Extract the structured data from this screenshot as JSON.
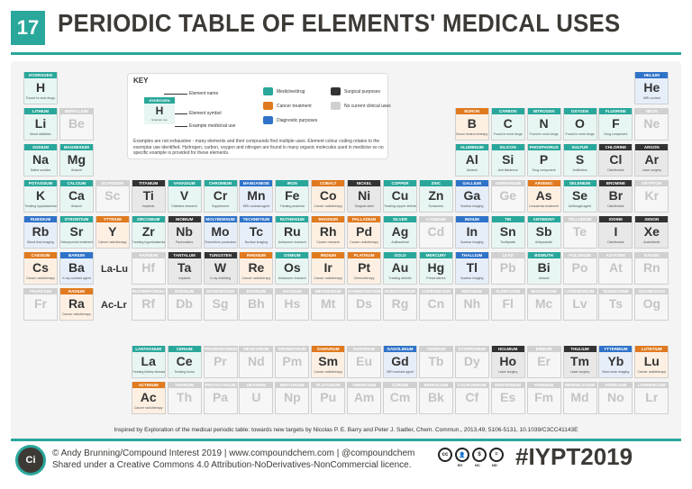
{
  "header": {
    "number": "17",
    "title": "PERIODIC TABLE OF ELEMENTS' MEDICAL USES"
  },
  "colors": {
    "accent": "#2aa79b",
    "medicine_drug": "#2aa79b",
    "cancer_treatment": "#e07a1f",
    "diagnostic": "#2f73c9",
    "surgical": "#333333",
    "no_use": "#d0d0d0"
  },
  "key": {
    "title": "KEY",
    "demo_name": "HYDROGEN",
    "demo_symbol": "H",
    "demo_use": "Example use",
    "label_name": "Element name",
    "label_symbol": "Element symbol",
    "label_use": "Example medicinal use",
    "categories": [
      {
        "label": "Medicine/drug",
        "color": "#2aa79b"
      },
      {
        "label": "Cancer treatment",
        "color": "#e07a1f"
      },
      {
        "label": "Diagnostic purposes",
        "color": "#2f73c9"
      },
      {
        "label": "Surgical purposes",
        "color": "#333333"
      },
      {
        "label": "No current clinical uses",
        "color": "#d0d0d0"
      }
    ],
    "note": "Examples are not exhaustive - many elements and their compounds find multiple uses. Element colour coding relates to the exemplar use identified. Hydrogen, carbon, oxygen and nitrogen are found in many organic molecules used in medicine so no specific example is provided for these elements."
  },
  "placeholders": {
    "lanthanides": "La-Lu",
    "actinides": "Ac-Lr"
  },
  "elements": [
    {
      "name": "Hydrogen",
      "symbol": "H",
      "cat": "med",
      "use": "Found in most drugs"
    },
    {
      "name": "Helium",
      "symbol": "He",
      "cat": "dia",
      "use": "MRI coolant"
    },
    {
      "name": "Lithium",
      "symbol": "Li",
      "cat": "med",
      "use": "Mood stabiliser"
    },
    {
      "name": "Beryllium",
      "symbol": "Be",
      "cat": "non",
      "use": ""
    },
    {
      "name": "Boron",
      "symbol": "B",
      "cat": "can",
      "use": "Boron neutron therapy"
    },
    {
      "name": "Carbon",
      "symbol": "C",
      "cat": "med",
      "use": "Found in most drugs"
    },
    {
      "name": "Nitrogen",
      "symbol": "N",
      "cat": "med",
      "use": "Found in most drugs"
    },
    {
      "name": "Oxygen",
      "symbol": "O",
      "cat": "med",
      "use": "Found in most drugs"
    },
    {
      "name": "Fluorine",
      "symbol": "F",
      "cat": "med",
      "use": "Drug component"
    },
    {
      "name": "Neon",
      "symbol": "Ne",
      "cat": "non",
      "use": ""
    },
    {
      "name": "Sodium",
      "symbol": "Na",
      "cat": "med",
      "use": "Saline solution"
    },
    {
      "name": "Magnesium",
      "symbol": "Mg",
      "cat": "med",
      "use": "Antacid"
    },
    {
      "name": "Aluminium",
      "symbol": "Al",
      "cat": "med",
      "use": "Antacid"
    },
    {
      "name": "Silicon",
      "symbol": "Si",
      "cat": "med",
      "use": "Anti-flatulence"
    },
    {
      "name": "Phosphorus",
      "symbol": "P",
      "cat": "med",
      "use": "Drug component"
    },
    {
      "name": "Sulfur",
      "symbol": "S",
      "cat": "med",
      "use": "Antibiotics"
    },
    {
      "name": "Chlorine",
      "symbol": "Cl",
      "cat": "sur",
      "use": "Disinfectant"
    },
    {
      "name": "Argon",
      "symbol": "Ar",
      "cat": "sur",
      "use": "Laser surgery"
    },
    {
      "name": "Potassium",
      "symbol": "K",
      "cat": "med",
      "use": "Treating hypokalaemia"
    },
    {
      "name": "Calcium",
      "symbol": "Ca",
      "cat": "med",
      "use": "Antacid"
    },
    {
      "name": "Scandium",
      "symbol": "Sc",
      "cat": "non",
      "use": ""
    },
    {
      "name": "Titanium",
      "symbol": "Ti",
      "cat": "sur",
      "use": "Implants"
    },
    {
      "name": "Vanadium",
      "symbol": "V",
      "cat": "med",
      "use": "Diabetes research"
    },
    {
      "name": "Chromium",
      "symbol": "Cr",
      "cat": "med",
      "use": "Supplement"
    },
    {
      "name": "Manganese",
      "symbol": "Mn",
      "cat": "dia",
      "use": "MRI contrast agent"
    },
    {
      "name": "Iron",
      "symbol": "Fe",
      "cat": "med",
      "use": "Treating anaemia"
    },
    {
      "name": "Cobalt",
      "symbol": "Co",
      "cat": "can",
      "use": "Cancer radiotherapy"
    },
    {
      "name": "Nickel",
      "symbol": "Ni",
      "cat": "sur",
      "use": "Surgical steel"
    },
    {
      "name": "Copper",
      "symbol": "Cu",
      "cat": "med",
      "use": "Treating copper deficiency"
    },
    {
      "name": "Zinc",
      "symbol": "Zn",
      "cat": "med",
      "use": "Sunscreen"
    },
    {
      "name": "Gallium",
      "symbol": "Ga",
      "cat": "dia",
      "use": "Nuclear imaging"
    },
    {
      "name": "Germanium",
      "symbol": "Ge",
      "cat": "non",
      "use": ""
    },
    {
      "name": "Arsenic",
      "symbol": "As",
      "cat": "can",
      "use": "Leukaemia treatment"
    },
    {
      "name": "Selenium",
      "symbol": "Se",
      "cat": "med",
      "use": "Antifungal agent"
    },
    {
      "name": "Bromine",
      "symbol": "Br",
      "cat": "sur",
      "use": "Disinfectant"
    },
    {
      "name": "Krypton",
      "symbol": "Kr",
      "cat": "non",
      "use": ""
    },
    {
      "name": "Rubidium",
      "symbol": "Rb",
      "cat": "dia",
      "use": "Blood flow imaging"
    },
    {
      "name": "Strontium",
      "symbol": "Sr",
      "cat": "med",
      "use": "Osteoporosis treatment"
    },
    {
      "name": "Yttrium",
      "symbol": "Y",
      "cat": "can",
      "use": "Cancer radiotherapy"
    },
    {
      "name": "Zirconium",
      "symbol": "Zr",
      "cat": "med",
      "use": "Treating hyperkalaemia"
    },
    {
      "name": "Niobium",
      "symbol": "Nb",
      "cat": "sur",
      "use": "Pacemakers"
    },
    {
      "name": "Molybdenum",
      "symbol": "Mo",
      "cat": "dia",
      "use": "Technetium production"
    },
    {
      "name": "Technetium",
      "symbol": "Tc",
      "cat": "dia",
      "use": "Nuclear imaging"
    },
    {
      "name": "Ruthenium",
      "symbol": "Ru",
      "cat": "med",
      "use": "Anticancer research"
    },
    {
      "name": "Rhodium",
      "symbol": "Rh",
      "cat": "can",
      "use": "Cancer research"
    },
    {
      "name": "Palladium",
      "symbol": "Pd",
      "cat": "can",
      "use": "Cancer radiotherapy"
    },
    {
      "name": "Silver",
      "symbol": "Ag",
      "cat": "med",
      "use": "Antibacterial"
    },
    {
      "name": "Cadmium",
      "symbol": "Cd",
      "cat": "non",
      "use": ""
    },
    {
      "name": "Indium",
      "symbol": "In",
      "cat": "dia",
      "use": "Nuclear imaging"
    },
    {
      "name": "Tin",
      "symbol": "Sn",
      "cat": "med",
      "use": "Toothpaste"
    },
    {
      "name": "Antimony",
      "symbol": "Sb",
      "cat": "med",
      "use": "Antiparasitic"
    },
    {
      "name": "Tellurium",
      "symbol": "Te",
      "cat": "non",
      "use": ""
    },
    {
      "name": "Iodine",
      "symbol": "I",
      "cat": "sur",
      "use": "Disinfectant"
    },
    {
      "name": "Xenon",
      "symbol": "Xe",
      "cat": "sur",
      "use": "Anaesthetic"
    },
    {
      "name": "Caesium",
      "symbol": "Cs",
      "cat": "can",
      "use": "Cancer radiotherapy"
    },
    {
      "name": "Barium",
      "symbol": "Ba",
      "cat": "dia",
      "use": "X-ray contrast agent"
    },
    {
      "name": "Hafnium",
      "symbol": "Hf",
      "cat": "non",
      "use": ""
    },
    {
      "name": "Tantalum",
      "symbol": "Ta",
      "cat": "sur",
      "use": "Implants"
    },
    {
      "name": "Tungsten",
      "symbol": "W",
      "cat": "sur",
      "use": "X-ray shielding"
    },
    {
      "name": "Rhenium",
      "symbol": "Re",
      "cat": "can",
      "use": "Cancer radiotherapy"
    },
    {
      "name": "Osmium",
      "symbol": "Os",
      "cat": "med",
      "use": "Anticancer research"
    },
    {
      "name": "Iridium",
      "symbol": "Ir",
      "cat": "can",
      "use": "Cancer radiotherapy"
    },
    {
      "name": "Platinum",
      "symbol": "Pt",
      "cat": "can",
      "use": "Chemotherapy"
    },
    {
      "name": "Gold",
      "symbol": "Au",
      "cat": "med",
      "use": "Treating arthritis"
    },
    {
      "name": "Mercury",
      "symbol": "Hg",
      "cat": "med",
      "use": "Preservatives"
    },
    {
      "name": "Thallium",
      "symbol": "Tl",
      "cat": "dia",
      "use": "Nuclear imaging"
    },
    {
      "name": "Lead",
      "symbol": "Pb",
      "cat": "non",
      "use": ""
    },
    {
      "name": "Bismuth",
      "symbol": "Bi",
      "cat": "med",
      "use": "Antacid"
    },
    {
      "name": "Polonium",
      "symbol": "Po",
      "cat": "non",
      "use": ""
    },
    {
      "name": "Astatine",
      "symbol": "At",
      "cat": "non",
      "use": ""
    },
    {
      "name": "Radon",
      "symbol": "Rn",
      "cat": "non",
      "use": ""
    },
    {
      "name": "Francium",
      "symbol": "Fr",
      "cat": "non",
      "use": ""
    },
    {
      "name": "Radium",
      "symbol": "Ra",
      "cat": "can",
      "use": "Cancer radiotherapy"
    },
    {
      "name": "Rutherfordium",
      "symbol": "Rf",
      "cat": "non",
      "use": ""
    },
    {
      "name": "Dubnium",
      "symbol": "Db",
      "cat": "non",
      "use": ""
    },
    {
      "name": "Seaborgium",
      "symbol": "Sg",
      "cat": "non",
      "use": ""
    },
    {
      "name": "Bohrium",
      "symbol": "Bh",
      "cat": "non",
      "use": ""
    },
    {
      "name": "Hassium",
      "symbol": "Hs",
      "cat": "non",
      "use": ""
    },
    {
      "name": "Meitnerium",
      "symbol": "Mt",
      "cat": "non",
      "use": ""
    },
    {
      "name": "Darmstadtium",
      "symbol": "Ds",
      "cat": "non",
      "use": ""
    },
    {
      "name": "Roentgenium",
      "symbol": "Rg",
      "cat": "non",
      "use": ""
    },
    {
      "name": "Copernicium",
      "symbol": "Cn",
      "cat": "non",
      "use": ""
    },
    {
      "name": "Nihonium",
      "symbol": "Nh",
      "cat": "non",
      "use": ""
    },
    {
      "name": "Flerovium",
      "symbol": "Fl",
      "cat": "non",
      "use": ""
    },
    {
      "name": "Moscovium",
      "symbol": "Mc",
      "cat": "non",
      "use": ""
    },
    {
      "name": "Livermorium",
      "symbol": "Lv",
      "cat": "non",
      "use": ""
    },
    {
      "name": "Tennessine",
      "symbol": "Ts",
      "cat": "non",
      "use": ""
    },
    {
      "name": "Oganesson",
      "symbol": "Og",
      "cat": "non",
      "use": ""
    },
    {
      "name": "Lanthanum",
      "symbol": "La",
      "cat": "med",
      "use": "Treating kidney disease"
    },
    {
      "name": "Cerium",
      "symbol": "Ce",
      "cat": "med",
      "use": "Treating burns"
    },
    {
      "name": "Praseodymium",
      "symbol": "Pr",
      "cat": "non",
      "use": ""
    },
    {
      "name": "Neodymium",
      "symbol": "Nd",
      "cat": "non",
      "use": ""
    },
    {
      "name": "Promethium",
      "symbol": "Pm",
      "cat": "non",
      "use": ""
    },
    {
      "name": "Samarium",
      "symbol": "Sm",
      "cat": "can",
      "use": "Cancer radiotherapy"
    },
    {
      "name": "Europium",
      "symbol": "Eu",
      "cat": "non",
      "use": ""
    },
    {
      "name": "Gadolinium",
      "symbol": "Gd",
      "cat": "dia",
      "use": "MRI contrast agent"
    },
    {
      "name": "Terbium",
      "symbol": "Tb",
      "cat": "non",
      "use": ""
    },
    {
      "name": "Dysprosium",
      "symbol": "Dy",
      "cat": "non",
      "use": ""
    },
    {
      "name": "Holmium",
      "symbol": "Ho",
      "cat": "sur",
      "use": "Laser surgery"
    },
    {
      "name": "Erbium",
      "symbol": "Er",
      "cat": "non",
      "use": ""
    },
    {
      "name": "Thulium",
      "symbol": "Tm",
      "cat": "sur",
      "use": "Laser surgery"
    },
    {
      "name": "Ytterbium",
      "symbol": "Yb",
      "cat": "dia",
      "use": "Brain scan imaging"
    },
    {
      "name": "Lutetium",
      "symbol": "Lu",
      "cat": "can",
      "use": "Cancer radiotherapy"
    },
    {
      "name": "Actinium",
      "symbol": "Ac",
      "cat": "can",
      "use": "Cancer radiotherapy"
    },
    {
      "name": "Thorium",
      "symbol": "Th",
      "cat": "non",
      "use": ""
    },
    {
      "name": "Protactinium",
      "symbol": "Pa",
      "cat": "non",
      "use": ""
    },
    {
      "name": "Uranium",
      "symbol": "U",
      "cat": "non",
      "use": ""
    },
    {
      "name": "Neptunium",
      "symbol": "Np",
      "cat": "non",
      "use": ""
    },
    {
      "name": "Plutonium",
      "symbol": "Pu",
      "cat": "non",
      "use": ""
    },
    {
      "name": "Americium",
      "symbol": "Am",
      "cat": "non",
      "use": ""
    },
    {
      "name": "Curium",
      "symbol": "Cm",
      "cat": "non",
      "use": ""
    },
    {
      "name": "Berkelium",
      "symbol": "Bk",
      "cat": "non",
      "use": ""
    },
    {
      "name": "Californium",
      "symbol": "Cf",
      "cat": "non",
      "use": ""
    },
    {
      "name": "Einsteinium",
      "symbol": "Es",
      "cat": "non",
      "use": ""
    },
    {
      "name": "Fermium",
      "symbol": "Fm",
      "cat": "non",
      "use": ""
    },
    {
      "name": "Mendelevium",
      "symbol": "Md",
      "cat": "non",
      "use": ""
    },
    {
      "name": "Nobelium",
      "symbol": "No",
      "cat": "non",
      "use": ""
    },
    {
      "name": "Lawrencium",
      "symbol": "Lr",
      "cat": "non",
      "use": ""
    }
  ],
  "source": "Inspired by Exploration of the medical periodic table: towards new targets by Nicolas P. E. Barry and Peter J. Sadler, Chem. Commun., 2013,49, 5106-5131, 10.1039/C3CC41143E",
  "footer": {
    "logo_text": "Ci",
    "credit_line1": "© Andy Brunning/Compound Interest 2019 | www.compoundchem.com | @compoundchem",
    "credit_line2": "Shared under a Creative Commons 4.0 Attribution-NoDerivatives-NonCommercial licence.",
    "cc_labels": [
      "cc",
      "BY",
      "NC",
      "ND"
    ],
    "hashtag": "#IYPT2019"
  }
}
